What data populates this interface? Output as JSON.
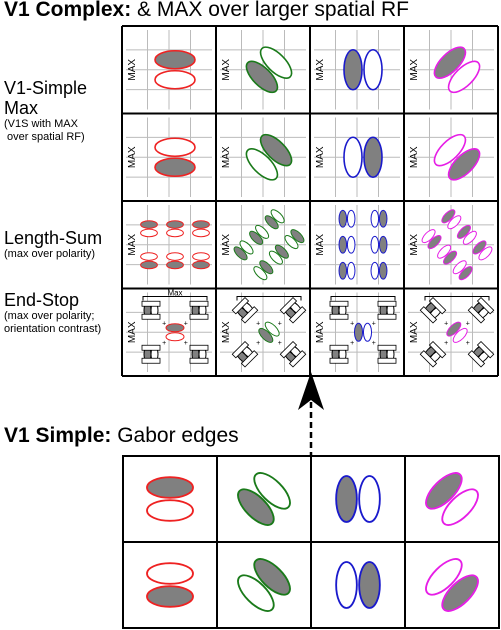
{
  "top_title": {
    "bold": "V1 Complex:",
    "rest": " & MAX over larger spatial RF"
  },
  "bottom_title": {
    "bold": "V1 Simple:",
    "rest": " Gabor edges"
  },
  "rows": [
    {
      "title_lines": [
        "V1-Simple",
        "Max"
      ],
      "sub_lines": [
        "(V1S with MAX",
        " over spatial RF)"
      ]
    },
    {
      "title_lines": [],
      "sub_lines": []
    },
    {
      "title_lines": [
        "Length-Sum"
      ],
      "sub_lines": [
        "(max over polarity)"
      ]
    },
    {
      "title_lines": [
        "End-Stop"
      ],
      "sub_lines": [
        "(max over polarity;",
        "orientation contrast)"
      ]
    }
  ],
  "cell_tag": "MAX",
  "endstop_tag": "Max",
  "colors": {
    "red": "#ee2222",
    "green": "#1a7a1a",
    "blue": "#1a1acc",
    "magenta": "#e61ee6",
    "fill": "#808080"
  }
}
